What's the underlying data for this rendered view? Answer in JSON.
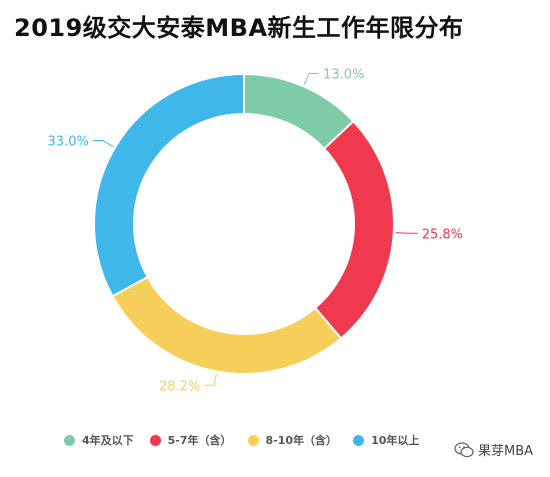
{
  "chart_data": {
    "type": "pie",
    "title": "2019级交大安泰MBA新生工作年限分布",
    "categories": [
      "4年及以下",
      "5-7年（含）",
      "8-10年（含）",
      "10年以上"
    ],
    "values": [
      13.0,
      25.8,
      28.2,
      33.0
    ],
    "value_labels": [
      "13.0%",
      "25.8%",
      "28.2%",
      "33.0%"
    ],
    "unit": "%",
    "colors": [
      "#7ecba7",
      "#f0394f",
      "#f6cf5b",
      "#3fb8e9"
    ],
    "donut": true,
    "legend_position": "bottom",
    "legend": [
      "4年及以下",
      "5-7年（含）",
      "8-10年（含）",
      "10年以上"
    ]
  },
  "watermark": {
    "text": "果芽MBA",
    "icon": "wechat-icon"
  }
}
